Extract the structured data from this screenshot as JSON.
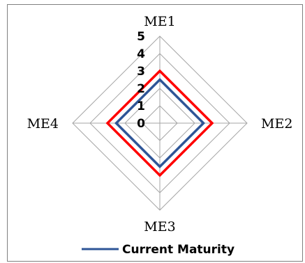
{
  "chart_data": {
    "type": "radar",
    "title": "",
    "axes": [
      "ME1",
      "ME2",
      "ME3",
      "ME4"
    ],
    "scale": {
      "min": 0,
      "max": 5,
      "ticks": [
        "0",
        "1",
        "2",
        "3",
        "4",
        "5"
      ]
    },
    "grid": true,
    "series": [
      {
        "name": "",
        "color": "#ff0000",
        "values": [
          3,
          3,
          3,
          3
        ]
      },
      {
        "name": "Current Maturity",
        "color": "#2e5597",
        "values": [
          2.5,
          2.5,
          2.5,
          2.5
        ]
      }
    ],
    "legend": {
      "position": "bottom",
      "entries": [
        "Current Maturity"
      ]
    },
    "grid_color": "#a6a6a6"
  }
}
